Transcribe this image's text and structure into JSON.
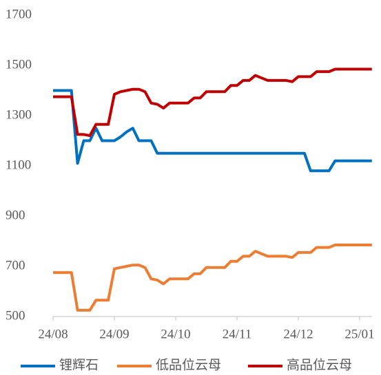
{
  "chart_data": {
    "type": "line",
    "categories": [
      "24/08",
      null,
      null,
      null,
      null,
      null,
      null,
      null,
      null,
      null,
      "24/09",
      null,
      null,
      null,
      null,
      null,
      null,
      null,
      null,
      null,
      "24/10",
      null,
      null,
      null,
      null,
      null,
      null,
      null,
      null,
      null,
      "24/11",
      null,
      null,
      null,
      null,
      null,
      null,
      null,
      null,
      null,
      "24/12",
      null,
      null,
      null,
      null,
      null,
      null,
      null,
      null,
      null,
      "25/01",
      null,
      null
    ],
    "series": [
      {
        "name": "锂辉石",
        "color": "#0070c0",
        "values": [
          1400,
          1400,
          1400,
          1400,
          1110,
          1200,
          1200,
          1250,
          1200,
          1200,
          1200,
          1215,
          1235,
          1250,
          1200,
          1200,
          1200,
          1150,
          1150,
          1150,
          1150,
          1150,
          1150,
          1150,
          1150,
          1150,
          1150,
          1150,
          1150,
          1150,
          1150,
          1150,
          1150,
          1150,
          1150,
          1150,
          1150,
          1150,
          1150,
          1150,
          1150,
          1150,
          1080,
          1080,
          1080,
          1080,
          1120,
          1120,
          1120,
          1120,
          1120,
          1120,
          1120
        ]
      },
      {
        "name": "低品位云母",
        "color": "#ed7d31",
        "values": [
          675,
          675,
          675,
          675,
          525,
          525,
          525,
          565,
          565,
          565,
          690,
          695,
          700,
          705,
          705,
          695,
          650,
          645,
          630,
          650,
          650,
          650,
          650,
          670,
          670,
          695,
          695,
          695,
          695,
          720,
          720,
          740,
          740,
          760,
          750,
          740,
          740,
          740,
          740,
          735,
          755,
          755,
          755,
          775,
          775,
          775,
          785,
          785,
          785,
          785,
          785,
          785,
          785
        ]
      },
      {
        "name": "高品位云母",
        "color": "#c00000",
        "values": [
          1375,
          1375,
          1375,
          1375,
          1225,
          1225,
          1220,
          1265,
          1265,
          1265,
          1385,
          1395,
          1400,
          1405,
          1405,
          1395,
          1350,
          1345,
          1330,
          1350,
          1350,
          1350,
          1350,
          1370,
          1370,
          1395,
          1395,
          1395,
          1395,
          1420,
          1420,
          1440,
          1440,
          1460,
          1450,
          1440,
          1440,
          1440,
          1440,
          1435,
          1455,
          1455,
          1455,
          1475,
          1475,
          1475,
          1485,
          1485,
          1485,
          1485,
          1485,
          1485,
          1485
        ]
      }
    ],
    "ylim": [
      500,
      1700
    ],
    "yticks": [
      500,
      700,
      900,
      1100,
      1300,
      1500,
      1700
    ],
    "grid": false,
    "legend": "bottom"
  }
}
